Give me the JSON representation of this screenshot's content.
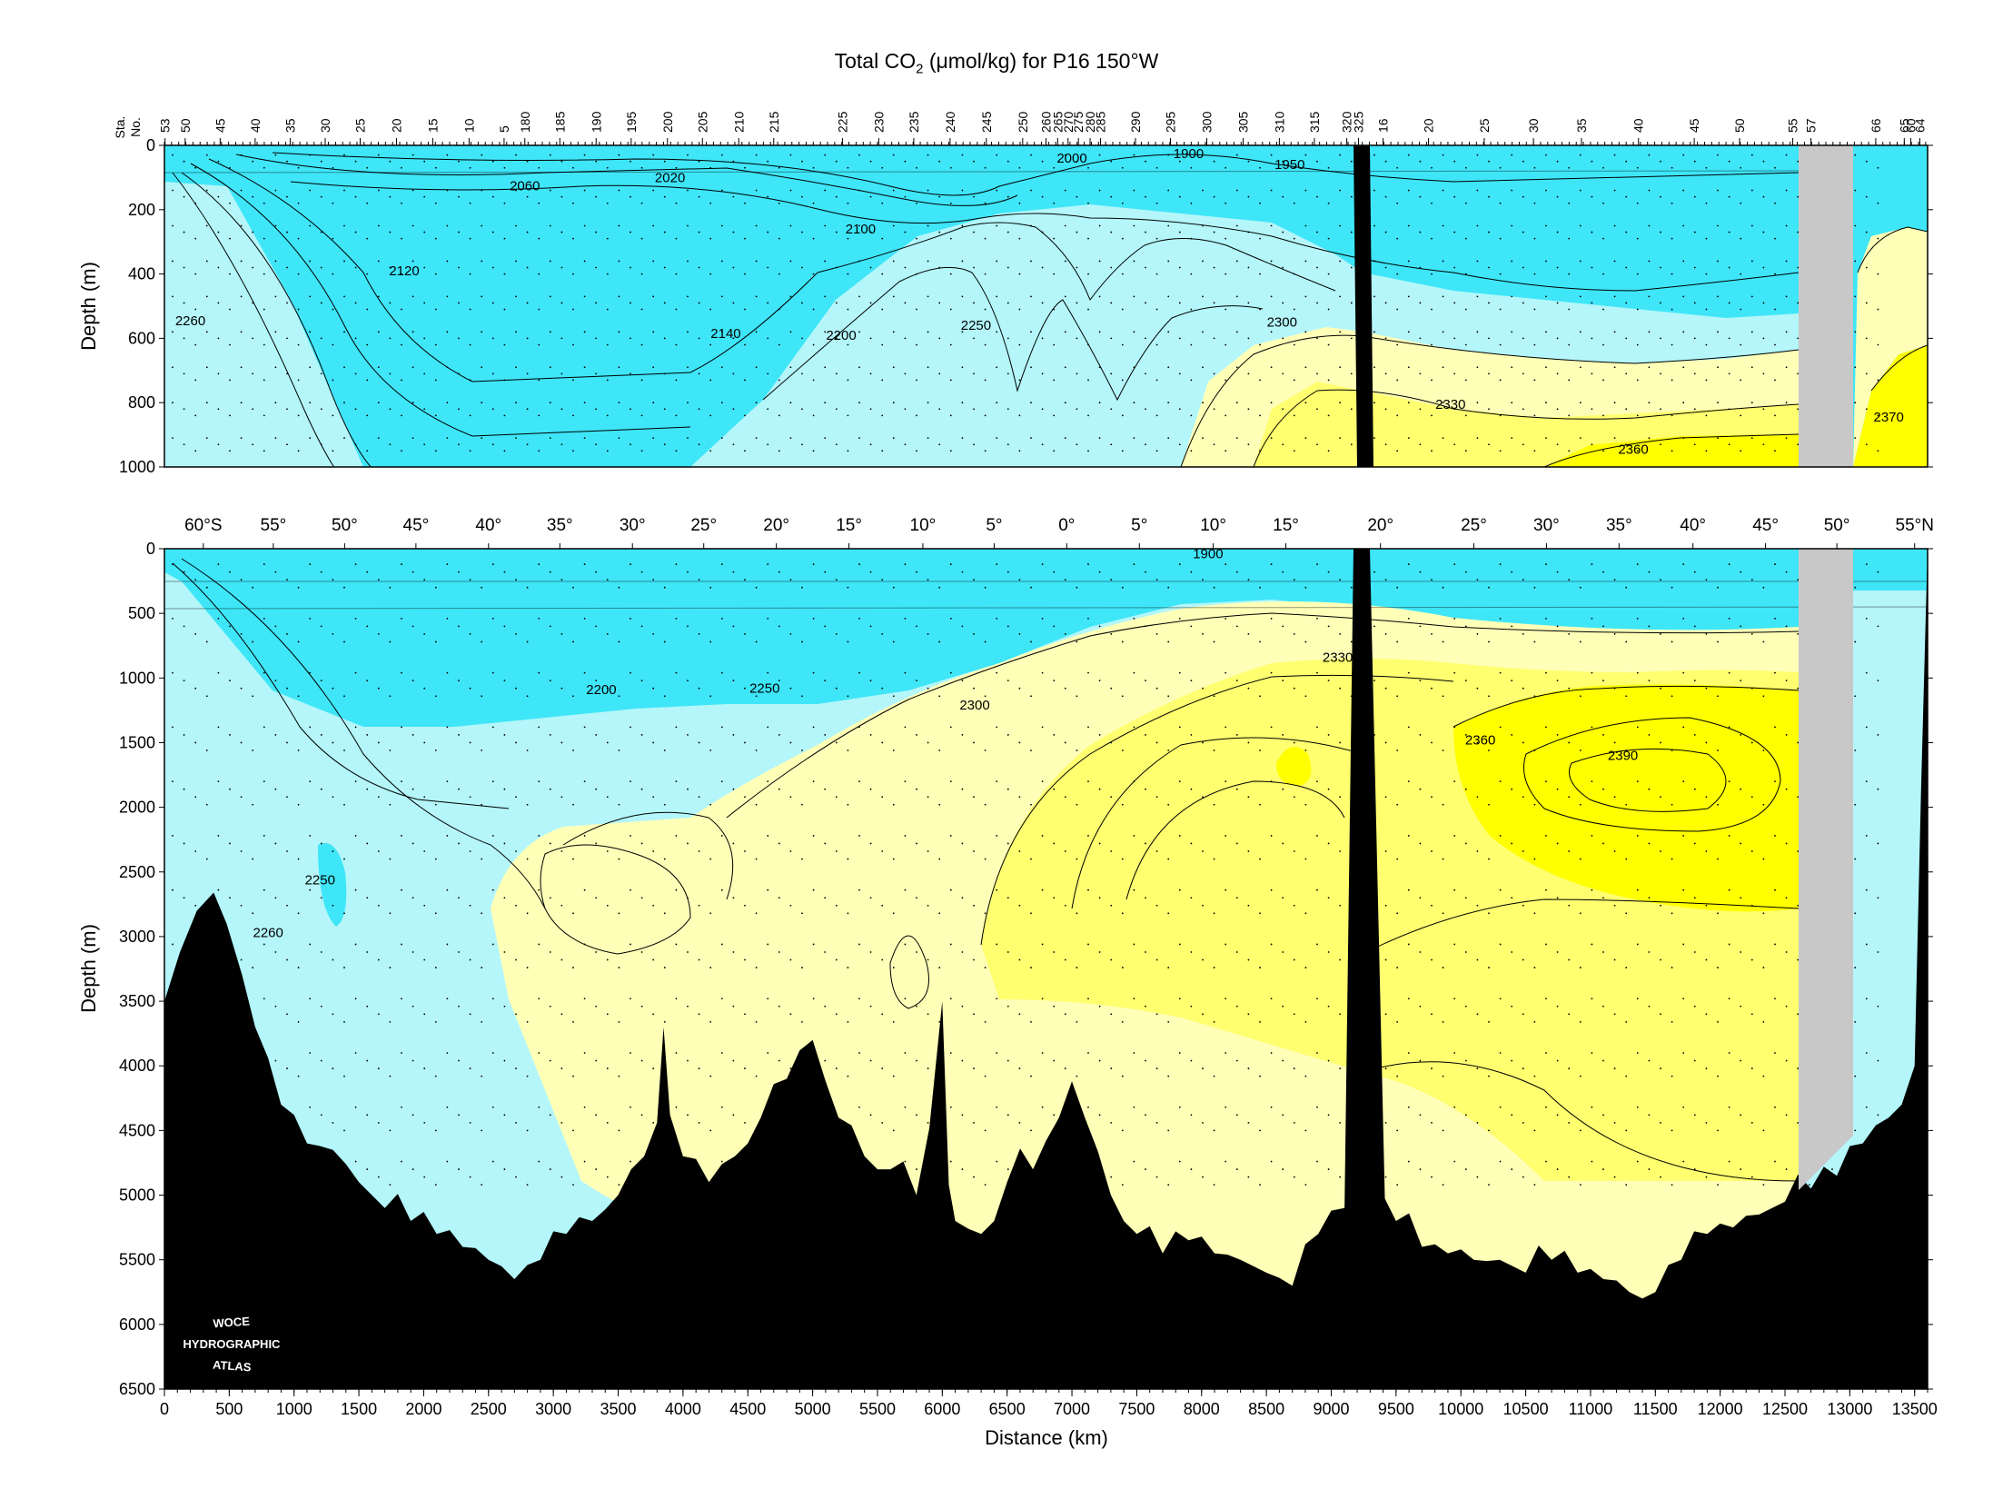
{
  "title": {
    "prefix": "Total CO",
    "sub": "2",
    "suffix": " (μmol/kg) for P16 150°W"
  },
  "colors": {
    "cyan": "#3ee6f8",
    "lightcyan": "#b4f6fa",
    "lightyellow": "#ffffb8",
    "midyellow": "#ffff70",
    "yellow": "#ffff00",
    "bottom": "#000000",
    "gap": "#c8c8c8"
  },
  "station_axis": {
    "label_top": "Sta.",
    "label_bottom": "No.",
    "ticks": [
      {
        "label": "53",
        "km": 5
      },
      {
        "label": "50",
        "km": 160
      },
      {
        "label": "45",
        "km": 430
      },
      {
        "label": "40",
        "km": 700
      },
      {
        "label": "35",
        "km": 970
      },
      {
        "label": "30",
        "km": 1240
      },
      {
        "label": "25",
        "km": 1510
      },
      {
        "label": "20",
        "km": 1790
      },
      {
        "label": "15",
        "km": 2070
      },
      {
        "label": "10",
        "km": 2350
      },
      {
        "label": "5",
        "km": 2620
      },
      {
        "label": "180",
        "km": 2780
      },
      {
        "label": "185",
        "km": 3050
      },
      {
        "label": "190",
        "km": 3330
      },
      {
        "label": "195",
        "km": 3600
      },
      {
        "label": "200",
        "km": 3880
      },
      {
        "label": "205",
        "km": 4150
      },
      {
        "label": "210",
        "km": 4430
      },
      {
        "label": "215",
        "km": 4700
      },
      {
        "label": "225",
        "km": 5230
      },
      {
        "label": "230",
        "km": 5510
      },
      {
        "label": "235",
        "km": 5780
      },
      {
        "label": "240",
        "km": 6060
      },
      {
        "label": "245",
        "km": 6340
      },
      {
        "label": "250",
        "km": 6620
      },
      {
        "label": "260",
        "km": 6800
      },
      {
        "label": "265",
        "km": 6890
      },
      {
        "label": "270",
        "km": 6970
      },
      {
        "label": "275",
        "km": 7050
      },
      {
        "label": "280",
        "km": 7140
      },
      {
        "label": "285",
        "km": 7220
      },
      {
        "label": "290",
        "km": 7490
      },
      {
        "label": "295",
        "km": 7760
      },
      {
        "label": "300",
        "km": 8040
      },
      {
        "label": "305",
        "km": 8320
      },
      {
        "label": "310",
        "km": 8600
      },
      {
        "label": "315",
        "km": 8870
      },
      {
        "label": "320",
        "km": 9120
      },
      {
        "label": "325",
        "km": 9210
      },
      {
        "label": "16",
        "km": 9400
      },
      {
        "label": "20",
        "km": 9750
      },
      {
        "label": "25",
        "km": 10180
      },
      {
        "label": "30",
        "km": 10560
      },
      {
        "label": "35",
        "km": 10930
      },
      {
        "label": "40",
        "km": 11370
      },
      {
        "label": "45",
        "km": 11800
      },
      {
        "label": "50",
        "km": 12150
      },
      {
        "label": "55",
        "km": 12560
      },
      {
        "label": "57",
        "km": 12700
      },
      {
        "label": "66",
        "km": 13200
      },
      {
        "label": "65",
        "km": 13420
      },
      {
        "label": "60",
        "km": 13470
      },
      {
        "label": "64",
        "km": 13540
      }
    ]
  },
  "latitude_axis": {
    "ticks": [
      {
        "label": "60°S",
        "km": 300
      },
      {
        "label": "55°",
        "km": 840
      },
      {
        "label": "50°",
        "km": 1390
      },
      {
        "label": "45°",
        "km": 1940
      },
      {
        "label": "40°",
        "km": 2500
      },
      {
        "label": "35°",
        "km": 3050
      },
      {
        "label": "30°",
        "km": 3610
      },
      {
        "label": "25°",
        "km": 4160
      },
      {
        "label": "20°",
        "km": 4720
      },
      {
        "label": "15°",
        "km": 5280
      },
      {
        "label": "10°",
        "km": 5850
      },
      {
        "label": "5°",
        "km": 6400
      },
      {
        "label": "0°",
        "km": 6960
      },
      {
        "label": "5°",
        "km": 7520
      },
      {
        "label": "10°",
        "km": 8090
      },
      {
        "label": "15°",
        "km": 8650
      },
      {
        "label": "20°",
        "km": 9380
      },
      {
        "label": "25°",
        "km": 10100
      },
      {
        "label": "30°",
        "km": 10660
      },
      {
        "label": "35°",
        "km": 11220
      },
      {
        "label": "40°",
        "km": 11790
      },
      {
        "label": "45°",
        "km": 12350
      },
      {
        "label": "50°",
        "km": 12900
      },
      {
        "label": "55°N",
        "km": 13500
      }
    ]
  },
  "chart_data": [
    {
      "type": "heatmap",
      "title": "Total CO2 (μmol/kg) for P16 150°W",
      "panel": "upper",
      "xlabel": "",
      "ylabel": "Depth (m)",
      "xlim": [
        0,
        13600
      ],
      "ylim": [
        0,
        1000
      ],
      "y_ticks": [
        0,
        200,
        400,
        600,
        800,
        1000
      ],
      "x_unit": "km",
      "contour_labels": [
        {
          "text": "2000",
          "x": 7000,
          "y": 40
        },
        {
          "text": "1900",
          "x": 7900,
          "y": 25
        },
        {
          "text": "2060",
          "x": 2780,
          "y": 125
        },
        {
          "text": "2020",
          "x": 3900,
          "y": 100
        },
        {
          "text": "1950",
          "x": 8680,
          "y": 60
        },
        {
          "text": "2100",
          "x": 5370,
          "y": 260
        },
        {
          "text": "2120",
          "x": 1850,
          "y": 390
        },
        {
          "text": "2260",
          "x": 200,
          "y": 545
        },
        {
          "text": "2140",
          "x": 4330,
          "y": 585
        },
        {
          "text": "2200",
          "x": 5220,
          "y": 590
        },
        {
          "text": "2250",
          "x": 6260,
          "y": 560
        },
        {
          "text": "2300",
          "x": 8620,
          "y": 550
        },
        {
          "text": "2330",
          "x": 9920,
          "y": 805
        },
        {
          "text": "2370",
          "x": 13300,
          "y": 845
        },
        {
          "text": "2360",
          "x": 11330,
          "y": 945
        }
      ]
    },
    {
      "type": "heatmap",
      "panel": "lower",
      "xlabel": "Distance (km)",
      "ylabel": "Depth (m)",
      "xlim": [
        0,
        13600
      ],
      "ylim": [
        0,
        6500
      ],
      "x_ticks": [
        0,
        500,
        1000,
        1500,
        2000,
        2500,
        3000,
        3500,
        4000,
        4500,
        5000,
        5500,
        6000,
        6500,
        7000,
        7500,
        8000,
        8500,
        9000,
        9500,
        10000,
        10500,
        11000,
        11500,
        12000,
        12500,
        13000,
        13500
      ],
      "y_ticks": [
        0,
        500,
        1000,
        1500,
        2000,
        2500,
        3000,
        3500,
        4000,
        4500,
        5000,
        5500,
        6000,
        6500
      ],
      "contour_labels": [
        {
          "text": "1900",
          "x": 8050,
          "y": 40
        },
        {
          "text": "2330",
          "x": 9050,
          "y": 840
        },
        {
          "text": "2200",
          "x": 3370,
          "y": 1090
        },
        {
          "text": "2250",
          "x": 4630,
          "y": 1080
        },
        {
          "text": "2300",
          "x": 6250,
          "y": 1210
        },
        {
          "text": "2360",
          "x": 10150,
          "y": 1480
        },
        {
          "text": "2390",
          "x": 11250,
          "y": 1600
        },
        {
          "text": "2250",
          "x": 1200,
          "y": 2560
        },
        {
          "text": "2260",
          "x": 800,
          "y": 2970
        }
      ]
    }
  ],
  "logo": {
    "line1": "WOCE",
    "line2": "HYDROGRAPHIC",
    "line3": "ATLAS"
  }
}
